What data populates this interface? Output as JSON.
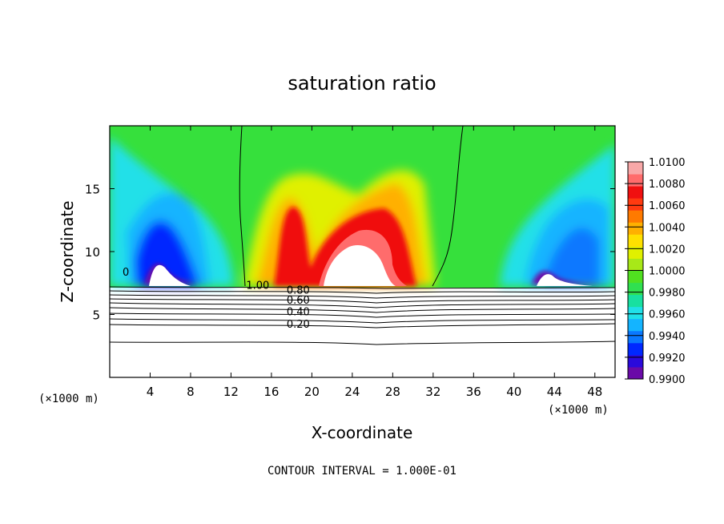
{
  "chart_data": {
    "type": "heatmap",
    "title": "saturation ratio",
    "xlabel": "X-coordinate",
    "ylabel": "Z-coordinate",
    "x_unit_left": "(×1000 m)",
    "x_unit_right": "(×1000 m)",
    "xlim": [
      0,
      50
    ],
    "ylim": [
      0,
      20
    ],
    "xticks": [
      {
        "value": 4,
        "label": "4"
      },
      {
        "value": 8,
        "label": "8"
      },
      {
        "value": 12,
        "label": "12"
      },
      {
        "value": 16,
        "label": "16"
      },
      {
        "value": 20,
        "label": "20"
      },
      {
        "value": 24,
        "label": "24"
      },
      {
        "value": 28,
        "label": "28"
      },
      {
        "value": 32,
        "label": "32"
      },
      {
        "value": 36,
        "label": "36"
      },
      {
        "value": 40,
        "label": "40"
      },
      {
        "value": 44,
        "label": "44"
      },
      {
        "value": 48,
        "label": "48"
      }
    ],
    "yticks": [
      {
        "value": 5,
        "label": "5"
      },
      {
        "value": 10,
        "label": "10"
      },
      {
        "value": 15,
        "label": "15"
      }
    ],
    "colorbar": {
      "min": 0.99,
      "max": 1.01,
      "levels": [
        "0.9900",
        "0.9920",
        "0.9940",
        "0.9960",
        "0.9980",
        "1.0000",
        "1.0020",
        "1.0040",
        "1.0060",
        "1.0080",
        "1.0100"
      ],
      "colors": [
        "#6a0aa8",
        "#2a0adc",
        "#0028ff",
        "#0a78ff",
        "#14b4ff",
        "#20e0e8",
        "#18e0a0",
        "#30e050",
        "#50e020",
        "#a8e818",
        "#e0f000",
        "#ffe000",
        "#ffb000",
        "#ff7a00",
        "#ff3a10",
        "#f01010",
        "#ff6c6c",
        "#f8a8a8"
      ]
    },
    "contours": [
      {
        "label": "1.00",
        "x": 13.5,
        "y": 7.3
      },
      {
        "label": "0.80",
        "x": 17.5,
        "y": 6.9
      },
      {
        "label": "0.60",
        "x": 17.5,
        "y": 6.1
      },
      {
        "label": "0.40",
        "x": 17.5,
        "y": 5.2
      },
      {
        "label": "0.20",
        "x": 17.5,
        "y": 4.2
      }
    ],
    "annotation": {
      "label": "0",
      "x": 1.6,
      "y": 8.4
    },
    "contour_interval": "CONTOUR INTERVAL = 1.000E-01"
  }
}
